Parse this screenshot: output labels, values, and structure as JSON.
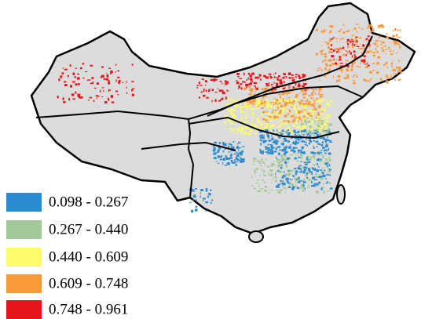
{
  "legend": {
    "items": [
      {
        "label": "0.098 -  0.267",
        "color": "#2b8bd0"
      },
      {
        "label": "0.267 -  0.440",
        "color": "#a3c99a"
      },
      {
        "label": "0.440 -  0.609",
        "color": "#fbfb6b"
      },
      {
        "label": "0.609 -  0.748",
        "color": "#f99a3a"
      },
      {
        "label": "0.748 -  0.961",
        "color": "#e8141b"
      }
    ]
  }
}
